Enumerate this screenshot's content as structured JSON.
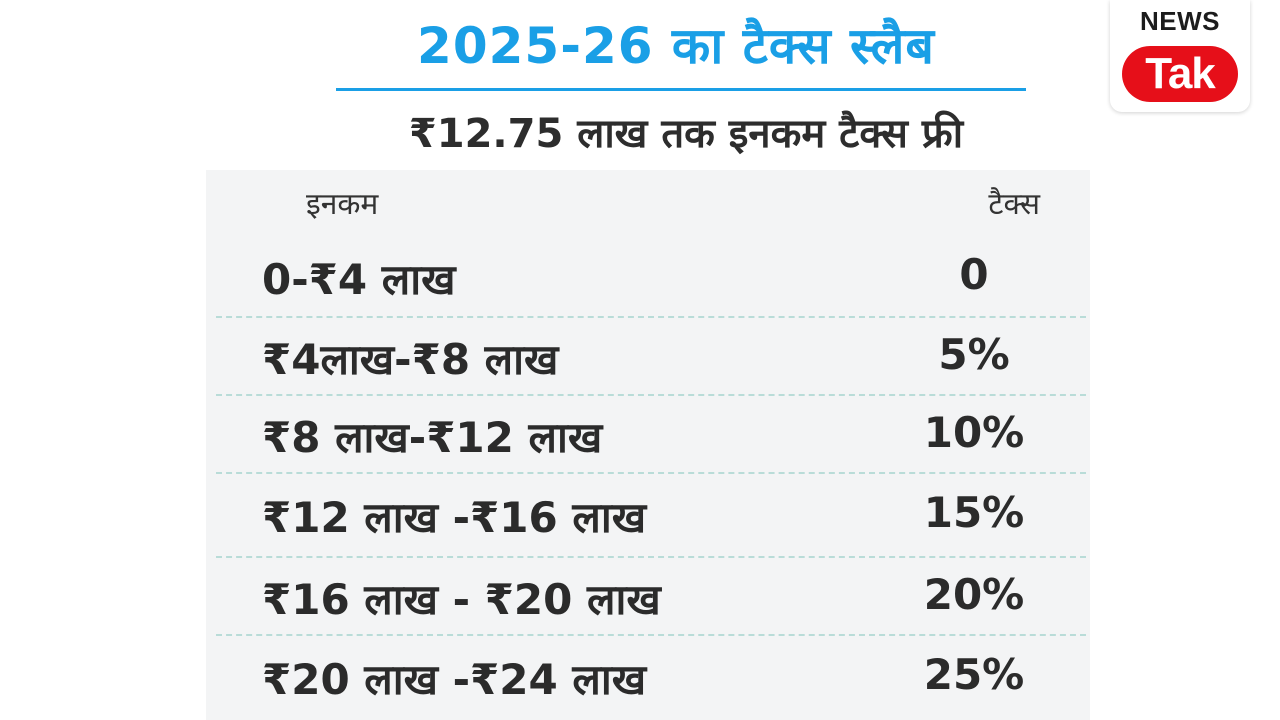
{
  "title": "2025-26 का टैक्स स्लैब",
  "subtitle": "₹12.75 लाख तक इनकम टैक्स फ्री",
  "table": {
    "headers": {
      "income": "इनकम",
      "tax": "टैक्स"
    },
    "rows": [
      {
        "income": "0-₹4 लाख",
        "tax": "0"
      },
      {
        "income": "₹4लाख-₹8 लाख",
        "tax": "5%"
      },
      {
        "income": "₹8 लाख-₹12 लाख",
        "tax": "10%"
      },
      {
        "income": "₹12 लाख -₹16 लाख",
        "tax": "15%"
      },
      {
        "income": "₹16 लाख - ₹20 लाख",
        "tax": "20%"
      },
      {
        "income": "₹20 लाख -₹24 लाख",
        "tax": "25%"
      }
    ]
  },
  "logo": {
    "line1": "NEWS",
    "line2": "Tak",
    "colors": {
      "pill": "#e60f19",
      "text": "#1c1c1c"
    }
  },
  "colors": {
    "title": "#1a9fe6",
    "separator": "#b9dcd8",
    "table_bg": "#f3f4f5"
  }
}
